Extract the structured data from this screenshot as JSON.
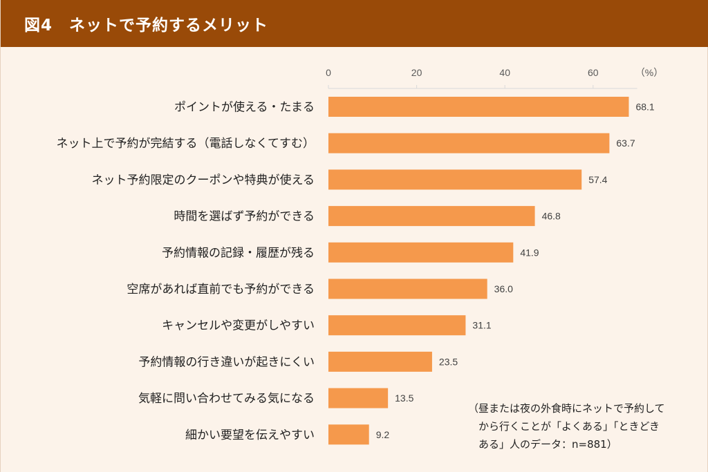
{
  "header": {
    "title": "図4　ネットで予約するメリット"
  },
  "colors": {
    "header_bg": "#994a08",
    "background": "#fcf3ea",
    "bar": "#f5994c"
  },
  "note": "（昼または夜の外食時にネットで予約して\n　から行くことが「よくある」「ときどき\n　ある」人のデータ：n=881）",
  "chart_data": {
    "type": "bar",
    "orientation": "horizontal",
    "unit_label": "（%）",
    "xlim": [
      0,
      70
    ],
    "ticks": [
      0,
      20,
      40,
      60
    ],
    "grid": false,
    "categories": [
      "ポイントが使える・たまる",
      "ネット上で予約が完結する（電話しなくてすむ）",
      "ネット予約限定のクーポンや特典が使える",
      "時間を選ばず予約ができる",
      "予約情報の記録・履歴が残る",
      "空席があれば直前でも予約ができる",
      "キャンセルや変更がしやすい",
      "予約情報の行き違いが起きにくい",
      "気軽に問い合わせてみる気になる",
      "細かい要望を伝えやすい"
    ],
    "values": [
      68.1,
      63.7,
      57.4,
      46.8,
      41.9,
      36.0,
      31.1,
      23.5,
      13.5,
      9.2
    ],
    "value_labels": [
      "68.1",
      "63.7",
      "57.4",
      "46.8",
      "41.9",
      "36.0",
      "31.1",
      "23.5",
      "13.5",
      "9.2"
    ]
  }
}
